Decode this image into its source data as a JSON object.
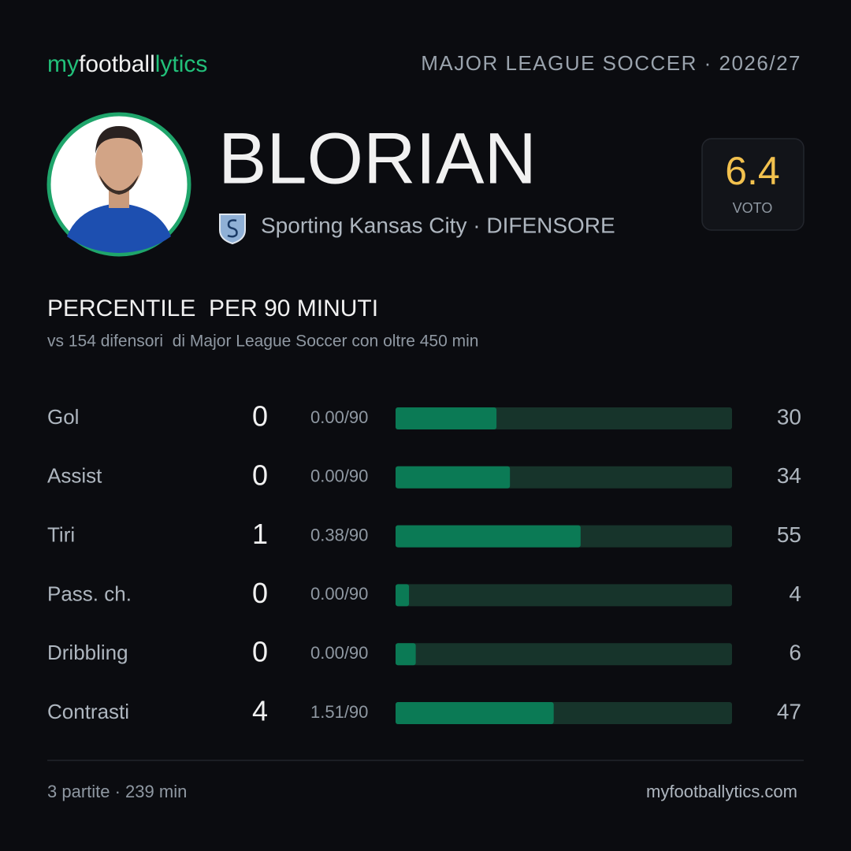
{
  "header": {
    "brand": [
      "my",
      "football",
      "lytics"
    ],
    "league": "MAJOR LEAGUE SOCCER · 2026/27"
  },
  "player": {
    "name": "BLORIAN",
    "team": "Sporting Kansas City · DIFENSORE",
    "rating": "6.4",
    "rating_label": "VOTO"
  },
  "section": {
    "title": "PERCENTILE  PER 90 MINUTI",
    "subtitle": "vs 154 difensori  di Major League Soccer con oltre 450 min"
  },
  "rows": [
    {
      "label": "Gol",
      "count": 0,
      "per90": "0.00/90",
      "percentile": 30
    },
    {
      "label": "Assist",
      "count": 0,
      "per90": "0.00/90",
      "percentile": 34
    },
    {
      "label": "Tiri",
      "count": 1,
      "per90": "0.38/90",
      "percentile": 55
    },
    {
      "label": "Pass. ch.",
      "count": 0,
      "per90": "0.00/90",
      "percentile": 4
    },
    {
      "label": "Dribbling",
      "count": 0,
      "per90": "0.00/90",
      "percentile": 6
    },
    {
      "label": "Contrasti",
      "count": 4,
      "per90": "1.51/90",
      "percentile": 47
    }
  ],
  "footer": {
    "left": "3 partite · 239 min",
    "right": "myfootballytics.com"
  }
}
